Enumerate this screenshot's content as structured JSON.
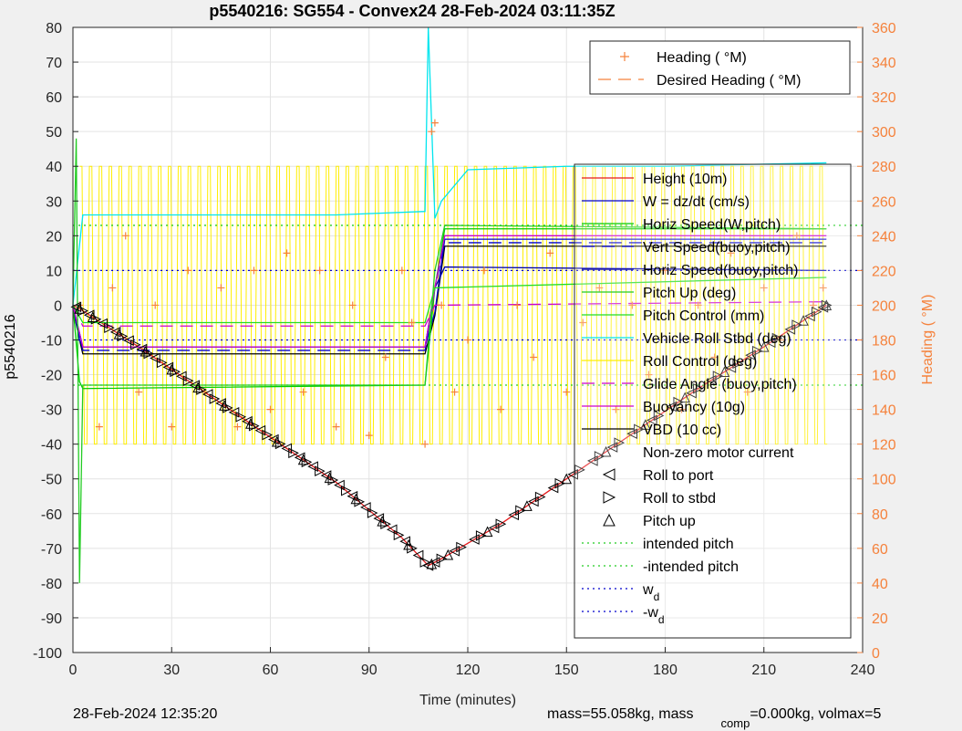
{
  "chart_data": {
    "type": "line",
    "title": "p5540216: SG554 - Convex24 28-Feb-2024 03:11:35Z",
    "xlabel": "Time (minutes)",
    "ylabel": "p5540216",
    "y2label": "Heading (  °M)",
    "xlim": [
      0,
      240
    ],
    "ylim": [
      -100,
      80
    ],
    "y2lim": [
      0,
      360
    ],
    "x_ticks": [
      "0",
      "30",
      "60",
      "90",
      "120",
      "150",
      "180",
      "210",
      "240"
    ],
    "y_ticks": [
      "80",
      "70",
      "60",
      "50",
      "40",
      "30",
      "20",
      "10",
      "0",
      "-10",
      "-20",
      "-30",
      "-40",
      "-50",
      "-60",
      "-70",
      "-80",
      "-90",
      "-100"
    ],
    "y2_ticks": [
      "360",
      "340",
      "320",
      "300",
      "280",
      "260",
      "240",
      "220",
      "200",
      "180",
      "160",
      "140",
      "120",
      "100",
      "80",
      "60",
      "40",
      "20",
      "0"
    ],
    "grid": true,
    "legend_top": {
      "placement": "top-right",
      "entries": [
        "Heading (  °M)",
        "Desired Heading (    °M)"
      ]
    },
    "legend_main": {
      "placement": "right",
      "entries": [
        {
          "label": "Height (10m)",
          "color": "#e41a1c",
          "style": "solid"
        },
        {
          "label": "W = dz/dt (cm/s)",
          "color": "#0000cc",
          "style": "solid"
        },
        {
          "label": "Horiz Speed(W,pitch)",
          "color": "#00cc00",
          "style": "solid"
        },
        {
          "label": "Vert Speed(buoy,pitch)",
          "color": "#0000cc",
          "style": "dashed"
        },
        {
          "label": "Horiz Speed(buoy,pitch)",
          "color": "#0000aa",
          "style": "solid"
        },
        {
          "label": "Pitch Up (deg)",
          "color": "#22cc22",
          "style": "solid"
        },
        {
          "label": "Pitch Control (mm)",
          "color": "#22dd22",
          "style": "solid"
        },
        {
          "label": "Vehicle Roll Stbd (deg)",
          "color": "#00e5ee",
          "style": "solid"
        },
        {
          "label": "Roll Control (deg)",
          "color": "#ffee00",
          "style": "solid"
        },
        {
          "label": "Glide Angle (buoy,pitch)",
          "color": "#cc00cc",
          "style": "dashed"
        },
        {
          "label": "Buoyancy (10g)",
          "color": "#cc00cc",
          "style": "solid"
        },
        {
          "label": "VBD (10 cc)",
          "color": "#000000",
          "style": "solid"
        },
        {
          "label": "Non-zero motor current",
          "color": "#000000",
          "style": "none"
        },
        {
          "label": "Roll to port",
          "color": "#000000",
          "style": "marker-left"
        },
        {
          "label": "Roll to stbd",
          "color": "#000000",
          "style": "marker-right"
        },
        {
          "label": "Pitch up",
          "color": "#000000",
          "style": "marker-up"
        },
        {
          "label": "intended pitch",
          "color": "#22cc22",
          "style": "dotted"
        },
        {
          "label": "-intended pitch",
          "color": "#22cc22",
          "style": "dotted"
        },
        {
          "label": "w",
          "sub": "d",
          "color": "#0000cc",
          "style": "dotted"
        },
        {
          "label": "-w",
          "sub": "d",
          "color": "#0000cc",
          "style": "dotted"
        }
      ]
    },
    "series": [
      {
        "name": "Height (10m)",
        "color": "#e41a1c",
        "x": [
          0,
          2,
          20,
          40,
          60,
          80,
          100,
          105,
          108,
          112,
          130,
          150,
          170,
          190,
          210,
          229
        ],
        "values": [
          0,
          -1,
          -12,
          -25,
          -38,
          -51,
          -67,
          -72,
          -75,
          -73,
          -63,
          -50,
          -37,
          -24,
          -12,
          0
        ]
      },
      {
        "name": "VBD (10 cc)",
        "color": "#000000",
        "x": [
          0,
          2,
          3,
          107,
          110,
          113,
          229
        ],
        "values": [
          -1,
          -10,
          -14,
          -14,
          -3,
          17,
          17
        ]
      },
      {
        "name": "W = dz/dt (cm/s)",
        "color": "#0000cc",
        "x": [
          0,
          2,
          3,
          107,
          110,
          113,
          229
        ],
        "values": [
          0,
          -10,
          -12,
          -12,
          -2,
          19,
          19
        ]
      },
      {
        "name": "Horiz Speed(W,pitch)",
        "color": "#00cc00",
        "x": [
          0,
          2,
          3,
          107,
          110,
          113,
          229
        ],
        "values": [
          0,
          -22,
          -24,
          -23,
          5,
          22,
          22
        ]
      },
      {
        "name": "Horiz Speed(buoy,pitch)",
        "color": "#0000aa",
        "x": [
          0,
          3,
          107,
          110,
          113,
          229
        ],
        "values": [
          0,
          -12,
          -12,
          5,
          11,
          10
        ]
      },
      {
        "name": "Vert Speed(buoy,pitch)",
        "color": "#0000cc",
        "x": [
          0,
          3,
          107,
          110,
          113,
          229
        ],
        "values": [
          0,
          -13,
          -13,
          5,
          18,
          18
        ]
      },
      {
        "name": "Buoyancy (10g)",
        "color": "#cc00cc",
        "x": [
          0,
          3,
          107,
          110,
          113,
          229
        ],
        "values": [
          0,
          -12,
          -12,
          5,
          20,
          20
        ]
      },
      {
        "name": "Glide Angle (buoy,pitch)",
        "color": "#cc00cc",
        "x": [
          0,
          3,
          107,
          110,
          229
        ],
        "values": [
          0,
          -6,
          -6,
          0,
          1
        ]
      },
      {
        "name": "Vehicle Roll Stbd (deg)",
        "color": "#00e5ee",
        "x": [
          0,
          3,
          20,
          50,
          80,
          107,
          108,
          110,
          112,
          120,
          150,
          180,
          229
        ],
        "values": [
          0,
          26,
          26,
          26,
          26,
          27,
          80,
          25,
          30,
          39,
          40,
          40,
          41
        ]
      },
      {
        "name": "Pitch Up (deg)",
        "color": "#22cc22",
        "x": [
          0,
          1,
          2,
          3,
          107,
          110,
          113,
          229
        ],
        "values": [
          0,
          48,
          -80,
          -23,
          -23,
          10,
          23,
          22
        ]
      },
      {
        "name": "Pitch Control (mm)",
        "color": "#22dd22",
        "x": [
          0,
          3,
          107,
          110,
          229
        ],
        "values": [
          0,
          -5,
          -5,
          5,
          8
        ]
      },
      {
        "name": "intended pitch",
        "color": "#22cc22",
        "x": [
          0,
          240
        ],
        "values": [
          23,
          23
        ]
      },
      {
        "name": "-intended pitch",
        "color": "#22cc22",
        "x": [
          0,
          240
        ],
        "values": [
          -23,
          -23
        ]
      },
      {
        "name": "w_d",
        "color": "#0000cc",
        "x": [
          0,
          240
        ],
        "values": [
          10,
          10
        ]
      },
      {
        "name": "-w_d",
        "color": "#0000cc",
        "x": [
          0,
          240
        ],
        "values": [
          -10,
          -10
        ]
      },
      {
        "name": "Roll Control (deg)",
        "color": "#ffee00",
        "kind": "oscillation",
        "x_range": [
          2,
          229
        ],
        "low": -40,
        "high": 40,
        "period_minutes": 3.0
      },
      {
        "name": "Heading (  °M)",
        "color": "#f5823c",
        "axis": "right",
        "kind": "scatter",
        "x": [
          2,
          8,
          12,
          16,
          20,
          25,
          30,
          35,
          40,
          45,
          50,
          55,
          60,
          65,
          70,
          75,
          80,
          85,
          90,
          95,
          100,
          103,
          107,
          109,
          110,
          112,
          116,
          120,
          125,
          130,
          135,
          140,
          145,
          150,
          155,
          160,
          165,
          170,
          175,
          180,
          185,
          190,
          195,
          200,
          205,
          210,
          215,
          220,
          225,
          228
        ],
        "values": [
          200,
          130,
          210,
          240,
          150,
          200,
          130,
          220,
          150,
          210,
          130,
          220,
          140,
          230,
          150,
          220,
          130,
          200,
          125,
          170,
          220,
          190,
          120,
          300,
          305,
          200,
          150,
          180,
          220,
          140,
          200,
          170,
          230,
          150,
          190,
          210,
          140,
          200,
          160,
          220,
          140,
          200,
          170,
          230,
          150,
          210,
          180,
          240,
          200,
          210
        ]
      },
      {
        "name": "Roll to port",
        "marker": "left",
        "kind": "markers",
        "x": [
          1,
          5,
          9,
          13,
          17,
          21,
          25,
          29,
          33,
          37,
          41,
          45,
          49,
          53,
          57,
          61,
          65,
          69,
          73,
          77,
          81,
          85,
          89,
          93,
          97,
          101,
          105,
          108,
          110,
          116,
          122,
          128,
          134,
          140,
          146,
          152,
          158,
          164,
          170,
          176,
          182,
          188,
          194,
          200,
          206,
          212,
          218,
          224,
          228
        ]
      },
      {
        "name": "Roll to stbd",
        "marker": "right",
        "kind": "markers",
        "x": [
          3,
          7,
          11,
          15,
          19,
          23,
          27,
          31,
          35,
          39,
          43,
          47,
          51,
          55,
          59,
          63,
          67,
          71,
          75,
          79,
          83,
          87,
          91,
          95,
          99,
          103,
          107,
          112,
          118,
          124,
          130,
          136,
          142,
          148,
          154,
          160,
          166,
          172,
          178,
          184,
          190,
          196,
          202,
          208,
          214,
          220,
          226,
          229
        ]
      },
      {
        "name": "Pitch up",
        "marker": "up",
        "kind": "markers",
        "x": [
          2,
          6,
          14,
          22,
          30,
          38,
          46,
          54,
          62,
          70,
          78,
          86,
          94,
          102,
          109,
          114,
          126,
          138,
          150,
          162,
          174,
          186,
          198,
          210,
          222,
          229
        ]
      }
    ]
  },
  "footer": {
    "timestamp": "28-Feb-2024 12:35:20",
    "mass_text": "mass=55.058kg, mass",
    "comp_sub": "comp",
    "mass_comp_text": "=0.000kg, volmax=5"
  }
}
